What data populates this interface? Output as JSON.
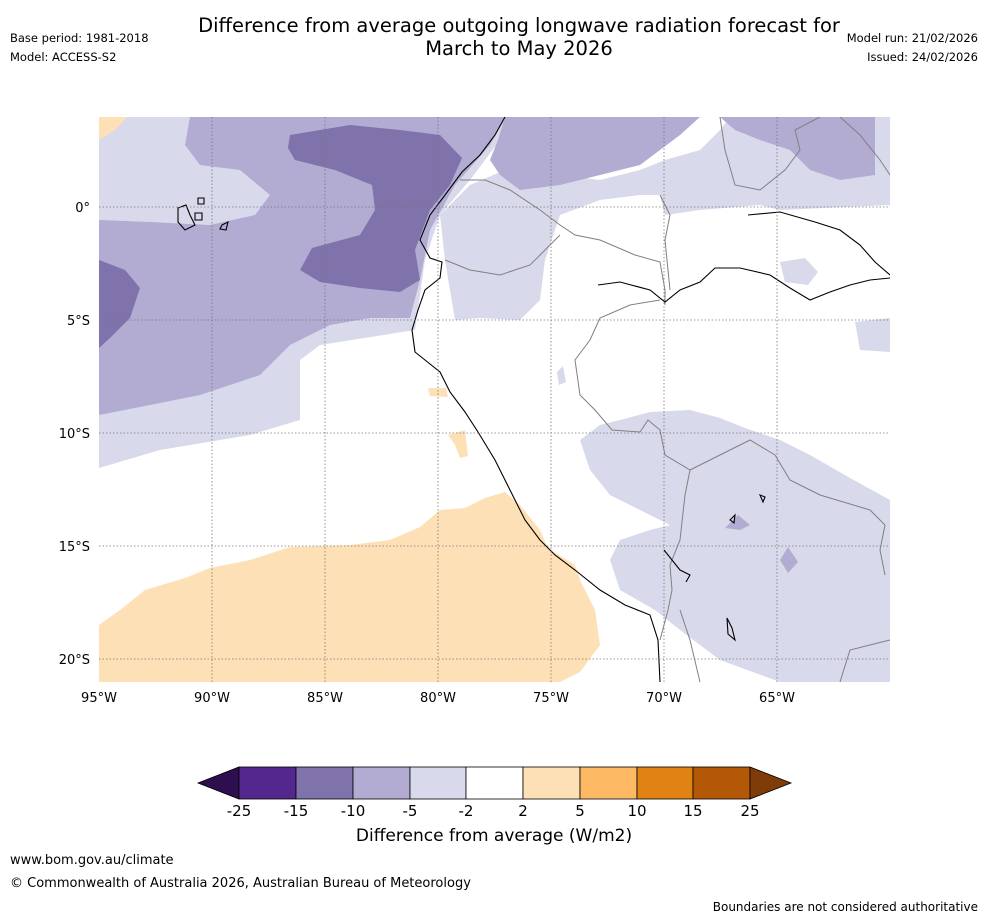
{
  "header": {
    "title_line1": "Difference from average outgoing longwave radiation forecast for",
    "title_line2": "March to May 2026",
    "base_period": "Base period: 1981-2018",
    "model": "Model: ACCESS-S2",
    "model_run": "Model run: 21/02/2026",
    "issued": "Issued: 24/02/2026"
  },
  "map": {
    "lat_labels": [
      "0°",
      "5°S",
      "10°S",
      "15°S",
      "20°S"
    ],
    "lon_labels": [
      "95°W",
      "90°W",
      "85°W",
      "80°W",
      "75°W",
      "70°W",
      "65°W"
    ],
    "extent": {
      "lon_min": -95,
      "lon_max": -60,
      "lat_min": -21,
      "lat_max": 4
    }
  },
  "legend": {
    "title": "Difference from average (W/m2)",
    "ticks": [
      "-25",
      "-15",
      "-10",
      "-5",
      "-2",
      "2",
      "5",
      "10",
      "15",
      "25"
    ],
    "colors": {
      "below_-25": "#2d0e4f",
      "-25_-15": "#54278f",
      "-15_-10": "#8073ac",
      "-10_-5": "#b2abd2",
      "-5_-2": "#d8daeb",
      "-2_2": "#ffffff",
      "2_5": "#fee0b6",
      "5_10": "#fdb863",
      "10_15": "#e08214",
      "15_25": "#b35806",
      "above_25": "#7f3b08"
    }
  },
  "footer": {
    "website": "www.bom.gov.au/climate",
    "copyright": "© Commonwealth of Australia 2026, Australian Bureau of Meteorology",
    "disclaimer": "Boundaries are not considered authoritative"
  }
}
